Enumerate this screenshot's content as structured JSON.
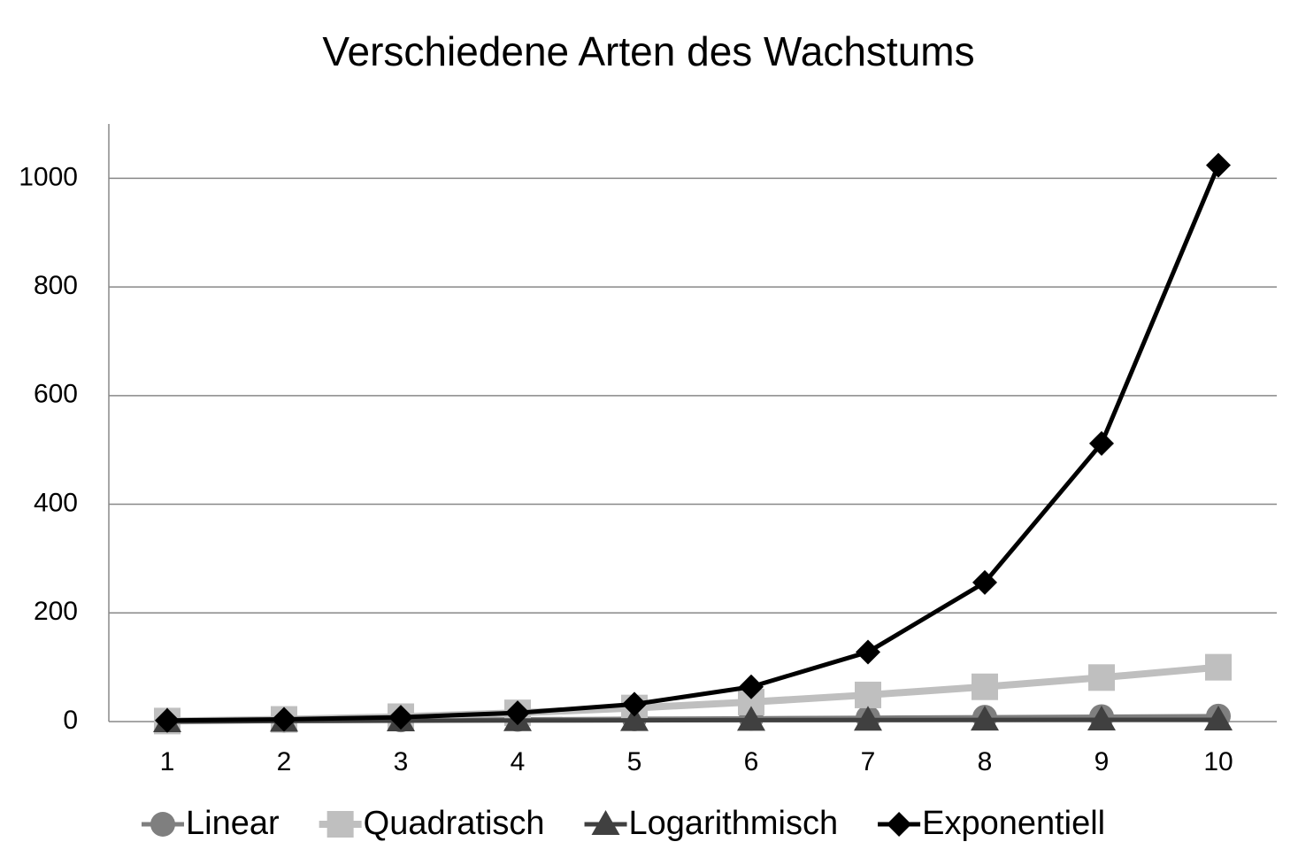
{
  "chart_data": {
    "type": "line",
    "title": "Verschiedene Arten des Wachstums",
    "categories": [
      "1",
      "2",
      "3",
      "4",
      "5",
      "6",
      "7",
      "8",
      "9",
      "10"
    ],
    "series": [
      {
        "name": "Linear",
        "color": "#7f7f7f",
        "marker": "circle",
        "values": [
          1,
          2,
          3,
          4,
          5,
          6,
          7,
          8,
          9,
          10
        ]
      },
      {
        "name": "Quadratisch",
        "color": "#bfbfbf",
        "marker": "square",
        "values": [
          1,
          4,
          9,
          16,
          25,
          36,
          49,
          64,
          81,
          100
        ]
      },
      {
        "name": "Logarithmisch",
        "color": "#404040",
        "marker": "triangle",
        "values": [
          0,
          1,
          1.58,
          2,
          2.32,
          2.58,
          2.81,
          3,
          3.17,
          3.32
        ]
      },
      {
        "name": "Exponentiell",
        "color": "#000000",
        "marker": "diamond",
        "values": [
          2,
          4,
          8,
          16,
          32,
          64,
          128,
          256,
          512,
          1024
        ]
      }
    ],
    "ylim": [
      0,
      1100
    ],
    "yticks": [
      0,
      200,
      400,
      600,
      800,
      1000
    ],
    "grid": true,
    "legend": "bottom"
  }
}
